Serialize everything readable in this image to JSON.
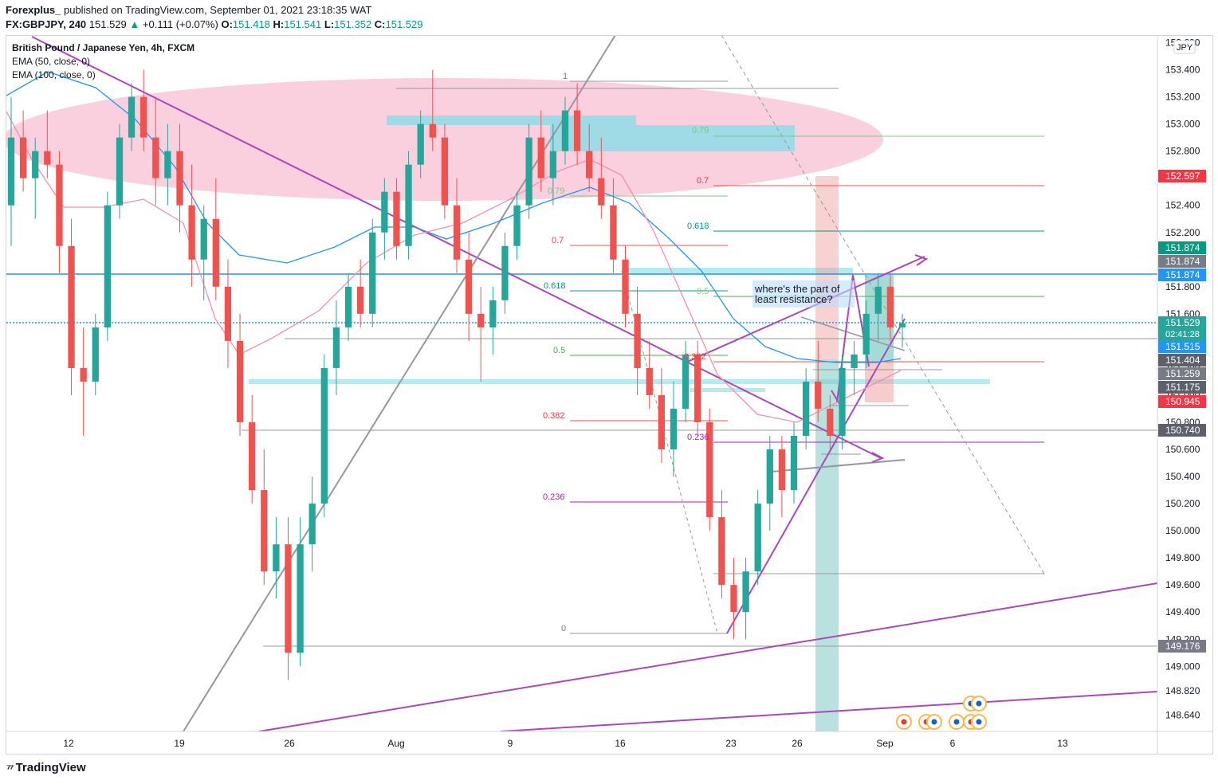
{
  "header": {
    "publisher": "Forexplus_",
    "published_on": "published on TradingView.com, September 01, 2021 23:18:35 WAT",
    "symbol": "FX:GBPJPY, 240",
    "last": "151.529",
    "change_arrow": "▲",
    "change": "+0.111 (+0.07%)",
    "o_label": "O:",
    "o_value": "151.418",
    "h_label": "H:",
    "h_value": "151.541",
    "l_label": "L:",
    "l_value": "151.352",
    "c_label": "C:",
    "c_value": "151.529"
  },
  "legend": {
    "title": "British Pound / Japanese Yen, 4h, FXCM",
    "ema50": "EMA (50, close, 0)",
    "ema100": "EMA (100, close, 0)"
  },
  "currency_label": "JPY",
  "branding": {
    "name": "TradingView"
  },
  "colors": {
    "up": "#26a69a",
    "down": "#ef5350",
    "purple": "#ab47bc",
    "gray": "#9598a1",
    "blue": "#2196f3",
    "ema50": "#2196f3",
    "ema100": "#f48fb1",
    "pink_zone": "#f8bbd0",
    "cyan_zone": "#80deea",
    "teal_box": "#80cbc4",
    "salmon_box": "#ffccbc"
  },
  "chart_data": {
    "type": "candlestick",
    "symbol": "FX:GBPJPY",
    "timeframe": "4h",
    "y_range": [
      148.52,
      153.65
    ],
    "price_ticks": [
      "148.640",
      "148.820",
      "149.000",
      "149.200",
      "149.400",
      "149.600",
      "149.800",
      "150.000",
      "150.200",
      "150.400",
      "150.600",
      "150.800",
      "151.000",
      "151.200",
      "151.400",
      "151.600",
      "151.800",
      "152.000",
      "152.200",
      "152.400",
      "152.600",
      "152.800",
      "153.000",
      "153.200",
      "153.400",
      "153.600"
    ],
    "date_ticks": [
      "12",
      "19",
      "26",
      "Aug",
      "9",
      "16",
      "23",
      "26",
      "Sep",
      "6",
      "13"
    ],
    "price_badges": [
      {
        "value": "152.597",
        "color": "#f23645",
        "text": "#ffffff"
      },
      {
        "value": "151.874",
        "color": "#089981",
        "text": "#ffffff"
      },
      {
        "value": "151.874",
        "color": "#787b86",
        "text": "#ffffff"
      },
      {
        "value": "151.874",
        "color": "#2196f3",
        "text": "#ffffff"
      },
      {
        "value": "151.529",
        "sub": "02:41:28",
        "color": "#26a69a",
        "text": "#ffffff"
      },
      {
        "value": "151.515",
        "color": "#2196f3",
        "text": "#ffffff"
      },
      {
        "value": "151.404",
        "color": "#5d606b",
        "text": "#ffffff"
      },
      {
        "value": "151.259",
        "color": "#787b86",
        "text": "#ffffff"
      },
      {
        "value": "151.175",
        "color": "#5d606b",
        "text": "#ffffff"
      },
      {
        "value": "150.945",
        "color": "#f23645",
        "text": "#ffffff"
      },
      {
        "value": "150.740",
        "color": "#5d606b",
        "text": "#ffffff"
      },
      {
        "value": "149.176",
        "color": "#787b86",
        "text": "#ffffff"
      }
    ],
    "fib_labels": [
      {
        "text": "1",
        "color": "#787b86"
      },
      {
        "text": "0.79",
        "color": "#81c784"
      },
      {
        "text": "0.79",
        "color": "#81c784"
      },
      {
        "text": "0.7",
        "color": "#f23645"
      },
      {
        "text": "0.618",
        "color": "#089981"
      },
      {
        "text": "0.7",
        "color": "#f23645"
      },
      {
        "text": "0.5",
        "color": "#81c784"
      },
      {
        "text": "0.618",
        "color": "#089981"
      },
      {
        "text": "0.5",
        "color": "#4caf50"
      },
      {
        "text": "0.382",
        "color": "#f23645"
      },
      {
        "text": "0.382",
        "color": "#f23645"
      },
      {
        "text": "0.236",
        "color": "#9c27b0"
      },
      {
        "text": "0.236",
        "color": "#9c27b0"
      },
      {
        "text": "0",
        "color": "#787b86"
      }
    ],
    "annotation": "where's the part of\nleast resistance?",
    "ohlc": [
      [
        152.4,
        153.2,
        152.1,
        152.9
      ],
      [
        152.9,
        153.1,
        152.5,
        152.6
      ],
      [
        152.6,
        152.9,
        152.3,
        152.8
      ],
      [
        152.8,
        153.1,
        152.6,
        152.7
      ],
      [
        152.7,
        152.8,
        151.9,
        152.1
      ],
      [
        152.1,
        152.3,
        151.0,
        151.2
      ],
      [
        151.2,
        151.5,
        150.7,
        151.1
      ],
      [
        151.1,
        151.6,
        151.0,
        151.5
      ],
      [
        151.5,
        152.5,
        151.4,
        152.4
      ],
      [
        152.4,
        153.0,
        152.3,
        152.9
      ],
      [
        152.9,
        153.3,
        152.8,
        153.2
      ],
      [
        153.2,
        153.4,
        152.8,
        152.9
      ],
      [
        152.9,
        153.2,
        152.4,
        152.6
      ],
      [
        152.6,
        153.0,
        152.4,
        152.8
      ],
      [
        152.8,
        153.0,
        152.2,
        152.4
      ],
      [
        152.4,
        152.7,
        151.8,
        152.0
      ],
      [
        152.0,
        152.4,
        151.7,
        152.3
      ],
      [
        152.3,
        152.6,
        151.7,
        151.8
      ],
      [
        151.8,
        152.0,
        151.2,
        151.4
      ],
      [
        151.4,
        151.6,
        150.7,
        150.8
      ],
      [
        150.8,
        151.0,
        150.2,
        150.3
      ],
      [
        150.3,
        150.6,
        149.6,
        149.7
      ],
      [
        149.7,
        150.1,
        149.5,
        149.9
      ],
      [
        149.9,
        150.1,
        148.9,
        149.1
      ],
      [
        149.1,
        150.1,
        149.0,
        149.9
      ],
      [
        149.9,
        150.4,
        149.7,
        150.2
      ],
      [
        150.2,
        151.3,
        150.1,
        151.2
      ],
      [
        151.2,
        151.7,
        151.0,
        151.5
      ],
      [
        151.5,
        151.9,
        151.4,
        151.8
      ],
      [
        151.8,
        152.0,
        151.5,
        151.6
      ],
      [
        151.6,
        152.3,
        151.5,
        152.2
      ],
      [
        152.2,
        152.6,
        152.0,
        152.5
      ],
      [
        152.5,
        152.6,
        152.0,
        152.1
      ],
      [
        152.1,
        152.8,
        152.0,
        152.7
      ],
      [
        152.7,
        153.1,
        152.6,
        153.0
      ],
      [
        153.0,
        153.4,
        152.8,
        152.9
      ],
      [
        152.9,
        153.0,
        152.3,
        152.4
      ],
      [
        152.4,
        152.6,
        151.9,
        152.0
      ],
      [
        152.0,
        152.2,
        151.4,
        151.6
      ],
      [
        151.6,
        151.8,
        151.1,
        151.5
      ],
      [
        151.5,
        151.8,
        151.3,
        151.7
      ],
      [
        151.7,
        152.2,
        151.6,
        152.1
      ],
      [
        152.1,
        152.5,
        152.0,
        152.4
      ],
      [
        152.4,
        153.0,
        152.3,
        152.9
      ],
      [
        152.9,
        153.1,
        152.5,
        152.6
      ],
      [
        152.6,
        153.0,
        152.4,
        152.8
      ],
      [
        152.8,
        153.2,
        152.7,
        153.1
      ],
      [
        153.1,
        153.3,
        152.7,
        152.8
      ],
      [
        152.8,
        153.0,
        152.5,
        152.6
      ],
      [
        152.6,
        152.9,
        152.3,
        152.4
      ],
      [
        152.4,
        152.6,
        151.9,
        152.0
      ],
      [
        152.0,
        152.1,
        151.5,
        151.6
      ],
      [
        151.6,
        151.8,
        151.0,
        151.2
      ],
      [
        151.2,
        151.4,
        150.9,
        151.0
      ],
      [
        151.0,
        151.2,
        150.5,
        150.6
      ],
      [
        150.6,
        151.1,
        150.4,
        150.9
      ],
      [
        150.9,
        151.4,
        150.8,
        151.3
      ],
      [
        151.3,
        151.4,
        150.7,
        150.8
      ],
      [
        150.8,
        150.9,
        150.0,
        150.1
      ],
      [
        150.1,
        150.3,
        149.5,
        149.6
      ],
      [
        149.6,
        149.8,
        149.2,
        149.4
      ],
      [
        149.4,
        149.8,
        149.2,
        149.7
      ],
      [
        149.7,
        150.3,
        149.6,
        150.2
      ],
      [
        150.2,
        150.7,
        150.0,
        150.6
      ],
      [
        150.6,
        150.7,
        150.1,
        150.3
      ],
      [
        150.3,
        150.8,
        150.2,
        150.7
      ],
      [
        150.7,
        151.2,
        150.6,
        151.1
      ],
      [
        151.1,
        151.4,
        150.8,
        150.9
      ],
      [
        150.9,
        151.0,
        150.6,
        150.7
      ],
      [
        150.7,
        151.3,
        150.6,
        151.2
      ],
      [
        151.2,
        151.4,
        151.0,
        151.3
      ],
      [
        151.3,
        151.7,
        151.2,
        151.6
      ],
      [
        151.6,
        151.9,
        151.4,
        151.8
      ],
      [
        151.8,
        151.9,
        151.4,
        151.5
      ],
      [
        151.5,
        151.6,
        151.35,
        151.53
      ]
    ]
  }
}
